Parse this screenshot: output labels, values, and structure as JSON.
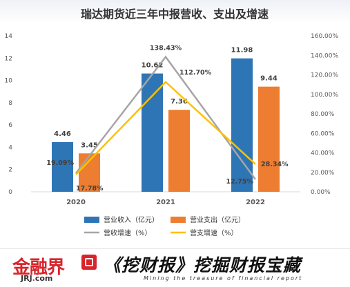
{
  "chart_data": {
    "type": "bar",
    "title": "瑞达期货近三年中报营收、支出及增速",
    "categories": [
      "2020",
      "2021",
      "2022"
    ],
    "series": [
      {
        "name": "营业收入（亿元）",
        "kind": "bar",
        "axis": "left",
        "color": "#2e75b6",
        "values": [
          4.46,
          10.62,
          11.98
        ],
        "labels": [
          "4.46",
          "10.62",
          "11.98"
        ]
      },
      {
        "name": "营业支出（亿元）",
        "kind": "bar",
        "axis": "left",
        "color": "#ed7d31",
        "values": [
          3.45,
          7.36,
          9.44
        ],
        "labels": [
          "3.45",
          "7.36",
          "9.44"
        ]
      },
      {
        "name": "营收增速（%）",
        "kind": "line",
        "axis": "right",
        "color": "#a5a5a5",
        "values": [
          19.09,
          138.43,
          12.75
        ],
        "labels": [
          "19.09%",
          "138.43%",
          "12.75%"
        ]
      },
      {
        "name": "营支增速（%）",
        "kind": "line",
        "axis": "right",
        "color": "#ffc000",
        "values": [
          17.78,
          112.7,
          28.34
        ],
        "labels": [
          "17.78%",
          "112.70%",
          "28.34%"
        ]
      }
    ],
    "y_left": {
      "min": 0,
      "max": 14,
      "ticks": [
        "0",
        "2",
        "4",
        "6",
        "8",
        "10",
        "12",
        "14"
      ]
    },
    "y_right": {
      "min": 0,
      "max": 160,
      "ticks": [
        "0.00%",
        "20.00%",
        "40.00%",
        "60.00%",
        "80.00%",
        "100.00%",
        "120.00%",
        "140.00%",
        "160.00%"
      ]
    },
    "grid": false,
    "legend_position": "bottom"
  },
  "footer": {
    "logo_text": "金融界",
    "logo_sub_a": "JRJ",
    "logo_sub_dot": ".",
    "logo_sub_b": "com",
    "brand_title": "《挖财报》挖掘财报宝藏",
    "brand_tagline": "Mining the treasure of financial report"
  }
}
